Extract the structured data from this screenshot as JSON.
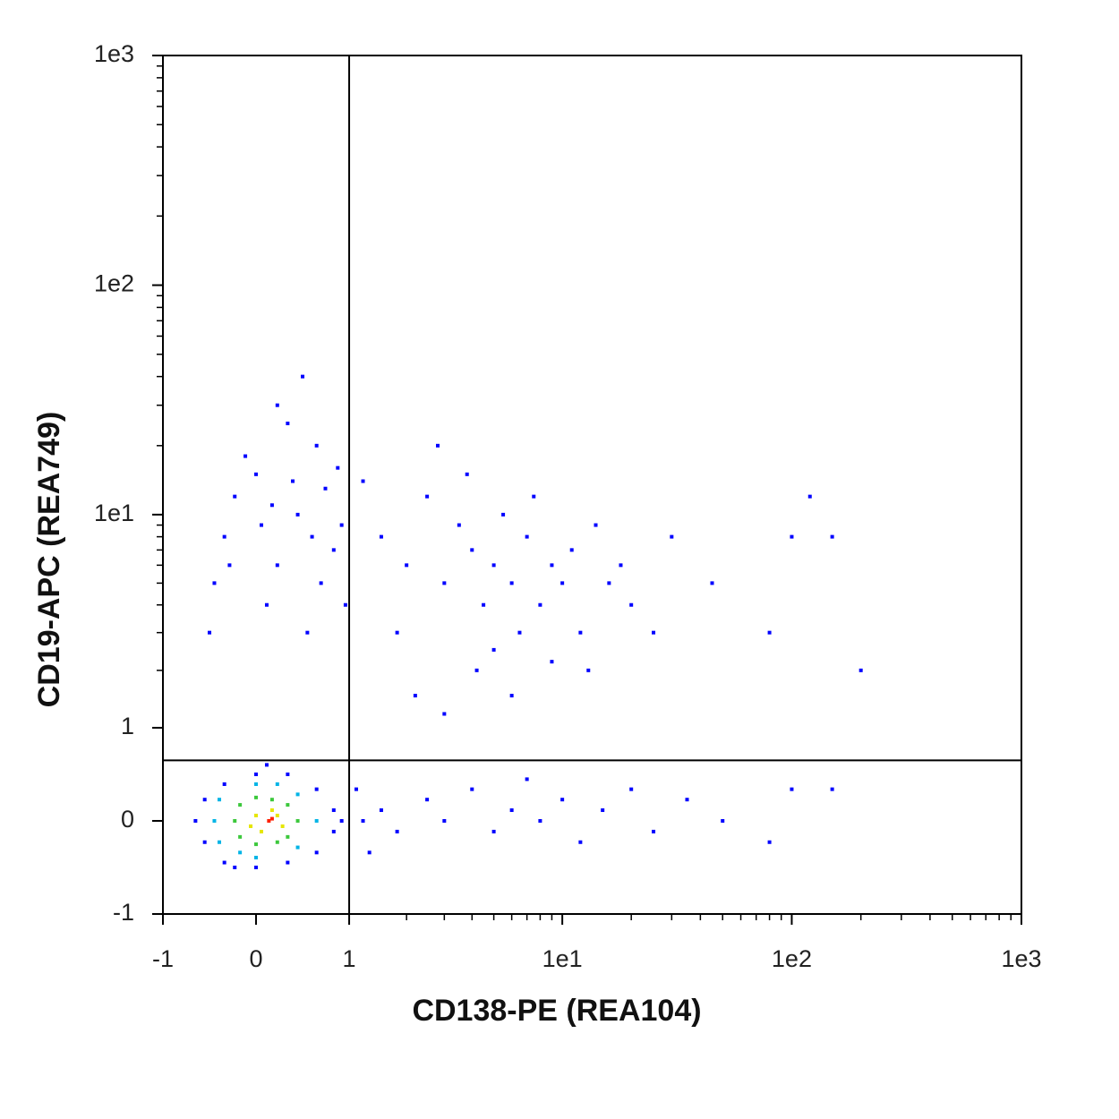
{
  "chart_data": {
    "type": "scatter",
    "x_label": "CD138-PE (REA104)",
    "y_label": "CD19-APC (REA749)",
    "xscale": "arcsinh",
    "yscale": "arcsinh",
    "xlim": [
      -1,
      1000
    ],
    "ylim": [
      -1,
      1000
    ],
    "xticks": [
      -1,
      0,
      1,
      {
        "value": 10,
        "label": "1e1"
      },
      {
        "value": 100,
        "label": "1e2"
      },
      {
        "value": 1000,
        "label": "1e3"
      }
    ],
    "yticks": [
      -1,
      0,
      1,
      {
        "value": 10,
        "label": "1e1"
      },
      {
        "value": 100,
        "label": "1e2"
      },
      {
        "value": 1000,
        "label": "1e3"
      }
    ],
    "xminorticks": [
      2,
      3,
      4,
      5,
      6,
      7,
      8,
      9,
      20,
      30,
      40,
      50,
      60,
      70,
      80,
      90,
      200,
      300,
      400,
      500,
      600,
      700,
      800,
      900
    ],
    "yminorticks": [
      2,
      3,
      4,
      5,
      6,
      7,
      8,
      9,
      20,
      30,
      40,
      50,
      60,
      70,
      80,
      90,
      200,
      300,
      400,
      500,
      600,
      700,
      800,
      900
    ],
    "quadrant": {
      "x": 1,
      "y": 0.6
    },
    "series": [
      {
        "color": "#0000ff",
        "x": [
          -0.3,
          -0.2,
          0,
          0.2,
          0.4,
          0.6,
          0.8,
          0.1,
          -0.4,
          0.5,
          0.3,
          0.7,
          0.9,
          -0.1,
          0.2,
          0.45,
          0.05,
          -0.25,
          0.65,
          0.35,
          0.15,
          0.55,
          0.85,
          0.95,
          -0.45,
          1.5,
          2,
          2.5,
          3,
          3.5,
          4,
          4.5,
          5,
          5.5,
          6,
          7,
          8,
          9,
          10,
          11,
          12,
          14,
          16,
          18,
          20,
          1.2,
          1.8,
          2.8,
          3.8,
          5,
          6.5,
          7.5,
          4.2,
          2.2,
          3,
          6,
          9,
          13,
          25,
          30,
          45,
          80,
          100,
          150,
          120,
          200,
          1.2,
          1.5,
          1.8,
          2.5,
          3,
          4,
          5,
          6,
          7,
          8,
          10,
          12,
          15,
          20,
          25,
          35,
          50,
          80,
          100,
          150,
          1.1,
          1.3,
          -0.6,
          -0.5,
          -0.5,
          -0.3,
          -0.3,
          0,
          0,
          0.3,
          0.3,
          0.6,
          0.6,
          0.8,
          0.8,
          0.9,
          0.1,
          -0.2
        ],
        "values": [
          8,
          12,
          15,
          6,
          10,
          20,
          7,
          4,
          5,
          3,
          25,
          13,
          9,
          18,
          30,
          40,
          9,
          6,
          5,
          14,
          11,
          8,
          16,
          4,
          3,
          8,
          6,
          12,
          5,
          9,
          7,
          4,
          6,
          10,
          5,
          8,
          4,
          6,
          5,
          7,
          3,
          9,
          5,
          6,
          4,
          14,
          3,
          20,
          15,
          2.5,
          3,
          12,
          2,
          1.5,
          1.2,
          1.5,
          2.2,
          2,
          3,
          8,
          5,
          3,
          8,
          8,
          12,
          2,
          0,
          0.1,
          -0.1,
          0.2,
          0,
          0.3,
          -0.1,
          0.1,
          0.4,
          0,
          0.2,
          -0.2,
          0.1,
          0.3,
          -0.1,
          0.2,
          0,
          -0.2,
          0.3,
          0.3,
          0.3,
          -0.3,
          0,
          0.2,
          -0.2,
          0.35,
          -0.4,
          0.45,
          -0.45,
          0.45,
          -0.4,
          0.3,
          -0.3,
          0.1,
          -0.1,
          0,
          0.55,
          -0.45
        ]
      },
      {
        "color": "#00b4e6",
        "x": [
          -0.4,
          -0.35,
          -0.35,
          0,
          0,
          0.4,
          0.4,
          0.6,
          0.2,
          -0.15
        ],
        "values": [
          0,
          0.2,
          -0.2,
          0.35,
          -0.35,
          0.25,
          -0.25,
          0,
          0.35,
          -0.3
        ]
      },
      {
        "color": "#3cc83c",
        "x": [
          -0.2,
          -0.15,
          -0.15,
          0,
          0,
          0.3,
          0.3,
          0.4,
          0.2,
          0.15
        ],
        "values": [
          0,
          0.15,
          -0.15,
          0.22,
          -0.22,
          0.15,
          -0.15,
          0,
          -0.2,
          0.2
        ]
      },
      {
        "color": "#e6e600",
        "x": [
          0,
          0.05,
          0.2,
          0.15,
          0.25,
          -0.05
        ],
        "values": [
          0.05,
          -0.1,
          0.05,
          0.1,
          -0.05,
          -0.05
        ]
      },
      {
        "color": "#ff2000",
        "x": [
          0.12,
          0.15
        ],
        "values": [
          0,
          0.02
        ]
      }
    ]
  }
}
